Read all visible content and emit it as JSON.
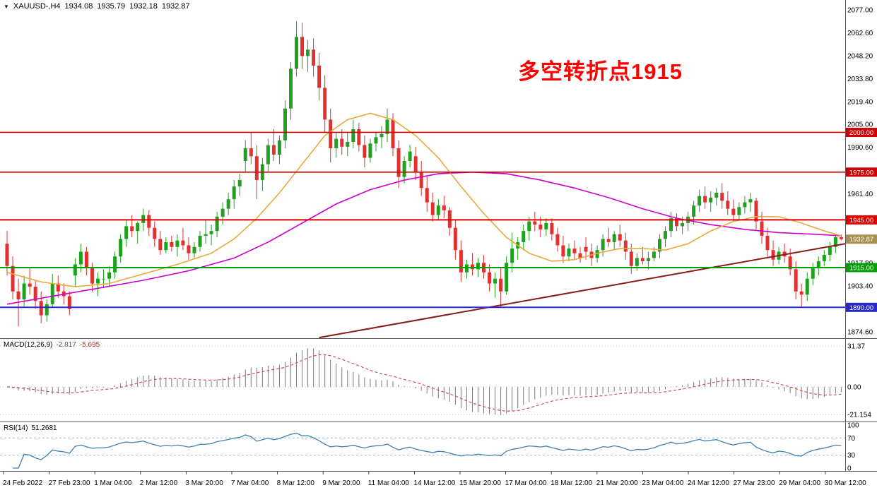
{
  "window": {
    "symbol_menu_icon": "▼",
    "symbol_label": "XAUUSD-,H4",
    "open": "1934.08",
    "high": "1935.79",
    "low": "1932.18",
    "close": "1932.87"
  },
  "annotation": {
    "text": "多空转折点1915",
    "color": "#FF0000"
  },
  "price_axis": {
    "labels": [
      {
        "text": "2077.00",
        "price": 2077.0
      },
      {
        "text": "2062.60",
        "price": 2062.6
      },
      {
        "text": "2048.20",
        "price": 2048.2
      },
      {
        "text": "2033.80",
        "price": 2033.8
      },
      {
        "text": "2019.40",
        "price": 2019.4
      },
      {
        "text": "2005.00",
        "price": 2005.0
      },
      {
        "text": "1990.60",
        "price": 1990.6
      },
      {
        "text": "1961.40",
        "price": 1961.4
      },
      {
        "text": "1917.80",
        "price": 1917.8
      },
      {
        "text": "1903.40",
        "price": 1903.4
      },
      {
        "text": "1874.60",
        "price": 1874.6
      }
    ],
    "badges": [
      {
        "text": "2000.00",
        "price": 2000.0,
        "color": "#CC0000"
      },
      {
        "text": "1975.00",
        "price": 1975.0,
        "color": "#CC0000"
      },
      {
        "text": "1945.00",
        "price": 1945.0,
        "color": "#E00000"
      },
      {
        "text": "1915.00",
        "price": 1915.0,
        "color": "#00A000"
      },
      {
        "text": "1890.00",
        "price": 1890.0,
        "color": "#2828CC"
      },
      {
        "text": "1932.87",
        "price": 1932.87,
        "color": "#A89050",
        "kind": "current"
      }
    ]
  },
  "time_axis": {
    "labels": [
      "24 Feb 2022",
      "27 Feb 23:00",
      "1 Mar 04:00",
      "2 Mar 12:00",
      "3 Mar 20:00",
      "7 Mar 04:00",
      "8 Mar 12:00",
      "9 Mar 20:00",
      "11 Mar 04:00",
      "14 Mar 12:00",
      "15 Mar 20:00",
      "17 Mar 04:00",
      "18 Mar 12:00",
      "21 Mar 20:00",
      "23 Mar 04:00",
      "24 Mar 12:00",
      "27 Mar 23:00",
      "29 Mar 04:00",
      "30 Mar 12:00"
    ]
  },
  "indicators": {
    "macd": {
      "label": "MACD(12,26,9)",
      "value_main": "-2.817",
      "value_signal": "-5.695",
      "range_labels": [
        {
          "text": "31.37",
          "value": 31.37
        },
        {
          "text": "0.00",
          "value": 0
        },
        {
          "text": "-21.154",
          "value": -21.154
        }
      ]
    },
    "rsi": {
      "label": "RSI(14)",
      "value": "51.2681",
      "range_labels": [
        {
          "text": "100",
          "value": 100
        },
        {
          "text": "70",
          "value": 70
        },
        {
          "text": "30",
          "value": 30
        },
        {
          "text": "0",
          "value": 0
        }
      ],
      "levels": [
        70,
        30
      ]
    }
  },
  "chart_data": {
    "type": "candlestick",
    "symbol": "XAUUSD-",
    "timeframe": "H4",
    "title": "XAUUSD- H4 with MACD(12,26,9) and RSI(14)",
    "y_range": [
      1874.6,
      2077.0
    ],
    "last_candle": {
      "open": 1934.08,
      "high": 1935.79,
      "low": 1932.18,
      "close": 1932.87
    },
    "colors": {
      "up": "#1FA11F",
      "down": "#E03030",
      "ma_fast": "#E8A93D",
      "ma_slow": "#CC00CC",
      "trend": "#8B1A1A",
      "macd_hist": "#7a7a7a",
      "macd_signal": "#D05050",
      "rsi": "#4080B0",
      "level_red": "#CC0000",
      "level_green": "#00A000",
      "level_blue": "#2828CC"
    },
    "levels": [
      {
        "price": 2000.0,
        "color": "#CC0000",
        "width": 1.6
      },
      {
        "price": 1975.0,
        "color": "#CC0000",
        "width": 1.6
      },
      {
        "price": 1945.0,
        "color": "#E00000",
        "width": 2
      },
      {
        "price": 1915.0,
        "color": "#00A000",
        "width": 2
      },
      {
        "price": 1890.0,
        "color": "#2828CC",
        "width": 2
      }
    ],
    "trendline": {
      "from": [
        55,
        1871
      ],
      "to": [
        147.7,
        1930
      ],
      "color": "#8B1A1A",
      "width": 2
    },
    "ma_fast_points": [
      [
        0,
        1912
      ],
      [
        6,
        1906
      ],
      [
        12,
        1903
      ],
      [
        18,
        1905
      ],
      [
        24,
        1911
      ],
      [
        30,
        1917
      ],
      [
        36,
        1924
      ],
      [
        40,
        1933
      ],
      [
        44,
        1946
      ],
      [
        48,
        1962
      ],
      [
        52,
        1980
      ],
      [
        56,
        1998
      ],
      [
        60,
        2008
      ],
      [
        64,
        2012
      ],
      [
        68,
        2008
      ],
      [
        72,
        1998
      ],
      [
        76,
        1984
      ],
      [
        80,
        1966
      ],
      [
        84,
        1949
      ],
      [
        88,
        1934
      ],
      [
        92,
        1924
      ],
      [
        96,
        1919
      ],
      [
        100,
        1920
      ],
      [
        104,
        1924
      ],
      [
        108,
        1927
      ],
      [
        112,
        1927
      ],
      [
        116,
        1926
      ],
      [
        120,
        1930
      ],
      [
        124,
        1938
      ],
      [
        128,
        1944
      ],
      [
        132,
        1947
      ],
      [
        136,
        1947
      ],
      [
        140,
        1943
      ],
      [
        144,
        1938
      ],
      [
        147,
        1935
      ]
    ],
    "ma_slow_points": [
      [
        0,
        1892
      ],
      [
        8,
        1897
      ],
      [
        16,
        1902
      ],
      [
        24,
        1907
      ],
      [
        32,
        1913
      ],
      [
        40,
        1921
      ],
      [
        46,
        1931
      ],
      [
        52,
        1943
      ],
      [
        58,
        1955
      ],
      [
        64,
        1964
      ],
      [
        70,
        1970
      ],
      [
        76,
        1974
      ],
      [
        82,
        1975
      ],
      [
        88,
        1974
      ],
      [
        94,
        1970
      ],
      [
        100,
        1965
      ],
      [
        106,
        1959
      ],
      [
        112,
        1952
      ],
      [
        118,
        1946
      ],
      [
        124,
        1942
      ],
      [
        130,
        1939
      ],
      [
        136,
        1937
      ],
      [
        142,
        1936
      ],
      [
        147,
        1935
      ]
    ],
    "candles": [
      [
        1930,
        1938,
        1910,
        1916
      ],
      [
        1916,
        1922,
        1895,
        1900
      ],
      [
        1900,
        1908,
        1878,
        1895
      ],
      [
        1895,
        1910,
        1890,
        1905
      ],
      [
        1905,
        1915,
        1898,
        1903
      ],
      [
        1903,
        1907,
        1889,
        1894
      ],
      [
        1894,
        1900,
        1880,
        1885
      ],
      [
        1885,
        1895,
        1881,
        1892
      ],
      [
        1892,
        1911,
        1890,
        1905
      ],
      [
        1905,
        1910,
        1896,
        1900
      ],
      [
        1900,
        1905,
        1892,
        1897
      ],
      [
        1897,
        1900,
        1885,
        1889
      ],
      [
        1910,
        1921,
        1903,
        1917
      ],
      [
        1917,
        1930,
        1912,
        1925
      ],
      [
        1925,
        1928,
        1910,
        1915
      ],
      [
        1915,
        1918,
        1900,
        1905
      ],
      [
        1905,
        1912,
        1897,
        1908
      ],
      [
        1908,
        1914,
        1902,
        1908
      ],
      [
        1908,
        1916,
        1903,
        1912
      ],
      [
        1912,
        1925,
        1908,
        1922
      ],
      [
        1922,
        1936,
        1918,
        1933
      ],
      [
        1933,
        1945,
        1928,
        1941
      ],
      [
        1941,
        1948,
        1934,
        1938
      ],
      [
        1938,
        1944,
        1930,
        1943
      ],
      [
        1943,
        1952,
        1938,
        1948
      ],
      [
        1948,
        1951,
        1935,
        1940
      ],
      [
        1940,
        1944,
        1928,
        1933
      ],
      [
        1933,
        1938,
        1923,
        1926
      ],
      [
        1926,
        1934,
        1924,
        1931
      ],
      [
        1931,
        1935,
        1925,
        1928
      ],
      [
        1928,
        1936,
        1922,
        1932
      ],
      [
        1932,
        1940,
        1926,
        1929
      ],
      [
        1929,
        1934,
        1920,
        1924
      ],
      [
        1924,
        1931,
        1921,
        1928
      ],
      [
        1928,
        1938,
        1925,
        1935
      ],
      [
        1935,
        1945,
        1930,
        1936
      ],
      [
        1936,
        1942,
        1929,
        1938
      ],
      [
        1938,
        1950,
        1934,
        1947
      ],
      [
        1947,
        1956,
        1942,
        1952
      ],
      [
        1952,
        1962,
        1948,
        1958
      ],
      [
        1958,
        1970,
        1952,
        1966
      ],
      [
        1966,
        1974,
        1960,
        1970
      ],
      [
        1982,
        1995,
        1975,
        1990
      ],
      [
        1990,
        2000,
        1980,
        1985
      ],
      [
        1985,
        1992,
        1958,
        1970
      ],
      [
        1970,
        1984,
        1963,
        1980
      ],
      [
        1980,
        1996,
        1975,
        1992
      ],
      [
        1992,
        2002,
        1982,
        1986
      ],
      [
        1986,
        1998,
        1980,
        1995
      ],
      [
        1995,
        2020,
        1990,
        2015
      ],
      [
        2015,
        2044,
        2008,
        2040
      ],
      [
        2040,
        2070,
        2035,
        2060
      ],
      [
        2060,
        2069,
        2040,
        2048
      ],
      [
        2048,
        2058,
        2038,
        2052
      ],
      [
        2052,
        2059,
        2035,
        2042
      ],
      [
        2042,
        2050,
        2020,
        2028
      ],
      [
        2028,
        2036,
        2000,
        2008
      ],
      [
        2008,
        2015,
        1981,
        1990
      ],
      [
        1990,
        2000,
        1984,
        1996
      ],
      [
        1996,
        2002,
        1986,
        1991
      ],
      [
        1991,
        2000,
        1985,
        1994
      ],
      [
        1994,
        2008,
        1990,
        2002
      ],
      [
        2002,
        2006,
        1988,
        1992
      ],
      [
        1992,
        1998,
        1978,
        1984
      ],
      [
        1984,
        1996,
        1981,
        1993
      ],
      [
        1993,
        2000,
        1988,
        1997
      ],
      [
        1997,
        2004,
        1990,
        1999
      ],
      [
        1999,
        2015,
        1994,
        2008
      ],
      [
        2008,
        2012,
        1985,
        1990
      ],
      [
        1990,
        1995,
        1965,
        1972
      ],
      [
        1972,
        1985,
        1968,
        1982
      ],
      [
        1982,
        1992,
        1978,
        1988
      ],
      [
        1985,
        1991,
        1970,
        1975
      ],
      [
        1975,
        1982,
        1960,
        1965
      ],
      [
        1965,
        1972,
        1950,
        1956
      ],
      [
        1956,
        1962,
        1944,
        1948
      ],
      [
        1948,
        1958,
        1945,
        1954
      ],
      [
        1954,
        1960,
        1946,
        1951
      ],
      [
        1951,
        1953,
        1935,
        1940
      ],
      [
        1940,
        1945,
        1920,
        1926
      ],
      [
        1926,
        1932,
        1906,
        1912
      ],
      [
        1912,
        1920,
        1908,
        1917
      ],
      [
        1917,
        1924,
        1910,
        1914
      ],
      [
        1914,
        1921,
        1909,
        1918
      ],
      [
        1918,
        1923,
        1908,
        1912
      ],
      [
        1912,
        1917,
        1900,
        1905
      ],
      [
        1905,
        1912,
        1896,
        1908
      ],
      [
        1908,
        1915,
        1890,
        1900
      ],
      [
        1900,
        1922,
        1898,
        1918
      ],
      [
        1918,
        1937,
        1912,
        1927
      ],
      [
        1927,
        1934,
        1920,
        1931
      ],
      [
        1931,
        1942,
        1926,
        1938
      ],
      [
        1938,
        1947,
        1932,
        1944
      ],
      [
        1944,
        1950,
        1938,
        1942
      ],
      [
        1942,
        1947,
        1934,
        1939
      ],
      [
        1939,
        1946,
        1935,
        1943
      ],
      [
        1943,
        1946,
        1932,
        1936
      ],
      [
        1936,
        1940,
        1925,
        1929
      ],
      [
        1929,
        1935,
        1918,
        1922
      ],
      [
        1922,
        1930,
        1919,
        1927
      ],
      [
        1927,
        1932,
        1920,
        1924
      ],
      [
        1924,
        1928,
        1918,
        1921
      ],
      [
        1928,
        1934,
        1920,
        1925
      ],
      [
        1925,
        1930,
        1916,
        1921
      ],
      [
        1921,
        1929,
        1918,
        1926
      ],
      [
        1926,
        1936,
        1922,
        1933
      ],
      [
        1933,
        1940,
        1928,
        1931
      ],
      [
        1931,
        1938,
        1926,
        1936
      ],
      [
        1936,
        1942,
        1928,
        1932
      ],
      [
        1932,
        1937,
        1920,
        1925
      ],
      [
        1925,
        1930,
        1911,
        1916
      ],
      [
        1916,
        1924,
        1913,
        1921
      ],
      [
        1921,
        1928,
        1917,
        1919
      ],
      [
        1919,
        1925,
        1914,
        1921
      ],
      [
        1921,
        1928,
        1919,
        1925
      ],
      [
        1925,
        1936,
        1921,
        1933
      ],
      [
        1933,
        1941,
        1928,
        1938
      ],
      [
        1938,
        1950,
        1934,
        1946
      ],
      [
        1946,
        1949,
        1938,
        1941
      ],
      [
        1941,
        1947,
        1936,
        1943
      ],
      [
        1943,
        1950,
        1938,
        1947
      ],
      [
        1947,
        1957,
        1942,
        1954
      ],
      [
        1954,
        1964,
        1950,
        1960
      ],
      [
        1960,
        1966,
        1952,
        1956
      ],
      [
        1956,
        1963,
        1950,
        1959
      ],
      [
        1959,
        1965,
        1954,
        1962
      ],
      [
        1962,
        1968,
        1952,
        1957
      ],
      [
        1957,
        1963,
        1948,
        1952
      ],
      [
        1952,
        1958,
        1944,
        1948
      ],
      [
        1948,
        1956,
        1945,
        1953
      ],
      [
        1953,
        1960,
        1949,
        1956
      ],
      [
        1956,
        1962,
        1950,
        1958
      ],
      [
        1957,
        1959,
        1938,
        1944
      ],
      [
        1944,
        1950,
        1930,
        1935
      ],
      [
        1935,
        1940,
        1922,
        1926
      ],
      [
        1926,
        1932,
        1916,
        1920
      ],
      [
        1920,
        1928,
        1917,
        1925
      ],
      [
        1925,
        1930,
        1918,
        1922
      ],
      [
        1922,
        1927,
        1910,
        1914
      ],
      [
        1914,
        1919,
        1895,
        1900
      ],
      [
        1900,
        1905,
        1890,
        1898
      ],
      [
        1898,
        1912,
        1894,
        1908
      ],
      [
        1908,
        1918,
        1904,
        1915
      ],
      [
        1915,
        1922,
        1910,
        1919
      ],
      [
        1919,
        1926,
        1916,
        1923
      ],
      [
        1923,
        1931,
        1919,
        1928
      ],
      [
        1928,
        1936,
        1924,
        1934.08
      ],
      [
        1934.08,
        1935.79,
        1932.18,
        1932.87
      ]
    ]
  }
}
